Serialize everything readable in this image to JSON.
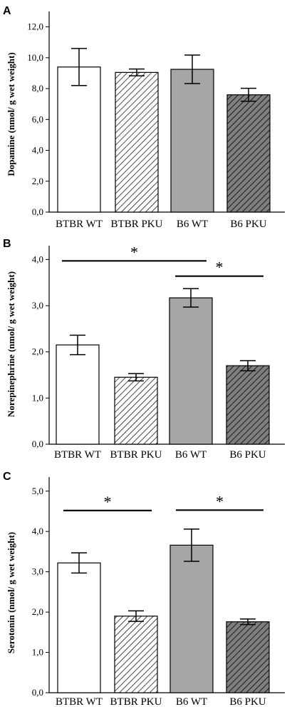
{
  "chart_data": [
    {
      "type": "bar",
      "panel": "A",
      "ylabel": "Dopamine (nmol/ g wet weight)",
      "categories": [
        "BTBR WT",
        "BTBR PKU",
        "B6 WT",
        "B6 PKU"
      ],
      "values": [
        9.4,
        9.05,
        9.25,
        7.6
      ],
      "errors": [
        1.2,
        0.22,
        0.92,
        0.42
      ],
      "ylim": [
        0,
        13
      ],
      "yticks": [
        "0,0",
        "2,0",
        "4,0",
        "6,0",
        "8,0",
        "10,0",
        "12,0"
      ],
      "ytick_values": [
        0,
        2,
        4,
        6,
        8,
        10,
        12
      ],
      "significance": []
    },
    {
      "type": "bar",
      "panel": "B",
      "ylabel": "Norepinephrine (nmol/ g wet weight)",
      "categories": [
        "BTBR WT",
        "BTBR PKU",
        "B6 WT",
        "B6 PKU"
      ],
      "values": [
        2.15,
        1.45,
        3.17,
        1.7
      ],
      "errors": [
        0.21,
        0.08,
        0.2,
        0.11
      ],
      "ylim": [
        0,
        4.3
      ],
      "yticks": [
        "0,0",
        "1,0",
        "2,0",
        "3,0",
        "4,0"
      ],
      "ytick_values": [
        0,
        1,
        2,
        3,
        4
      ],
      "significance": [
        {
          "from": 0,
          "to": 2,
          "level": 3.97,
          "label": "*"
        },
        {
          "from": 2,
          "to": 3,
          "level": 3.64,
          "label": "*"
        }
      ]
    },
    {
      "type": "bar",
      "panel": "C",
      "ylabel": "Serotonin (nmol/ g wet weight)",
      "categories": [
        "BTBR WT",
        "BTBR PKU",
        "B6 WT",
        "B6 PKU"
      ],
      "values": [
        3.22,
        1.9,
        3.66,
        1.76
      ],
      "errors": [
        0.25,
        0.13,
        0.4,
        0.07
      ],
      "ylim": [
        0,
        5.35
      ],
      "yticks": [
        "0,0",
        "1,0",
        "2,0",
        "3,0",
        "4,0",
        "5,0"
      ],
      "ytick_values": [
        0,
        1,
        2,
        3,
        4,
        5
      ],
      "significance": [
        {
          "from": 0,
          "to": 1,
          "level": 4.52,
          "label": "*"
        },
        {
          "from": 2,
          "to": 3,
          "level": 4.53,
          "label": "*"
        }
      ]
    }
  ],
  "styles": {
    "fills": [
      "#ffffff",
      "hatch-light",
      "#a6a6a6",
      "hatch-dark"
    ],
    "hatch_light_bg": "#ffffff",
    "hatch_dark_bg": "#7f7f7f"
  }
}
